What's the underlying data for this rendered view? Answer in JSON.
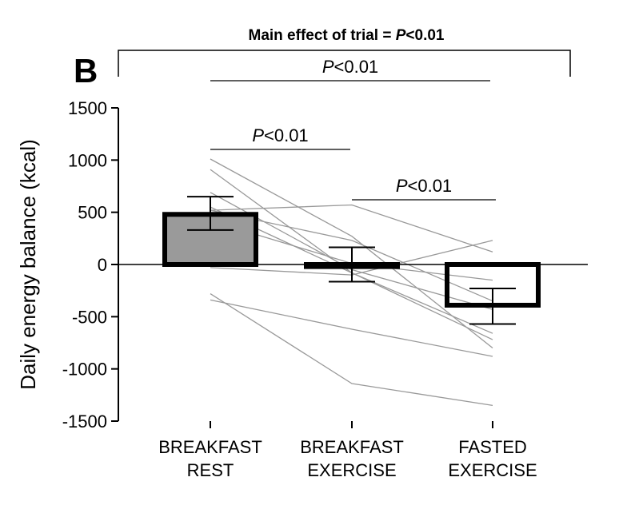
{
  "panel_label": "B",
  "main_effect": {
    "prefix": "Main effect of trial = ",
    "p": "P",
    "suffix": "<0.01"
  },
  "colors": {
    "rest_bar_fill": "#9a9a9a",
    "bar_stroke": "#000000",
    "individual_line": "#999999",
    "axis": "#000000"
  },
  "chart_data": {
    "type": "bar",
    "ylabel": "Daily energy balance (kcal)",
    "ylim": [
      -1500,
      1500
    ],
    "yticks": [
      1500,
      1000,
      500,
      0,
      -500,
      -1000,
      -1500
    ],
    "categories": [
      {
        "line1": "BREAKFAST",
        "line2": "REST"
      },
      {
        "line1": "BREAKFAST",
        "line2": "EXERCISE"
      },
      {
        "line1": "FASTED",
        "line2": "EXERCISE"
      }
    ],
    "values": [
      480,
      -20,
      -390
    ],
    "errors": [
      [
        330,
        650
      ],
      [
        -165,
        165
      ],
      [
        -570,
        -230
      ]
    ],
    "bar_fills": [
      "#9a9a9a",
      "#ffffff",
      "#ffffff"
    ],
    "individual_series": [
      [
        1010,
        270,
        -800
      ],
      [
        910,
        -80,
        -720
      ],
      [
        690,
        -50,
        -430
      ],
      [
        550,
        -80,
        -660
      ],
      [
        520,
        230,
        -350
      ],
      [
        420,
        10,
        -150
      ],
      [
        -30,
        -100,
        230
      ],
      [
        -280,
        -1140,
        -1350
      ],
      [
        -340,
        -620,
        -880
      ],
      [
        520,
        570,
        120
      ]
    ],
    "significance": [
      {
        "from": 0,
        "to": 2,
        "p": "P",
        "text": "<0.01"
      },
      {
        "from": 0,
        "to": 1,
        "p": "P",
        "text": "<0.01"
      },
      {
        "from": 1,
        "to": 2,
        "p": "P",
        "text": "<0.01"
      }
    ]
  }
}
